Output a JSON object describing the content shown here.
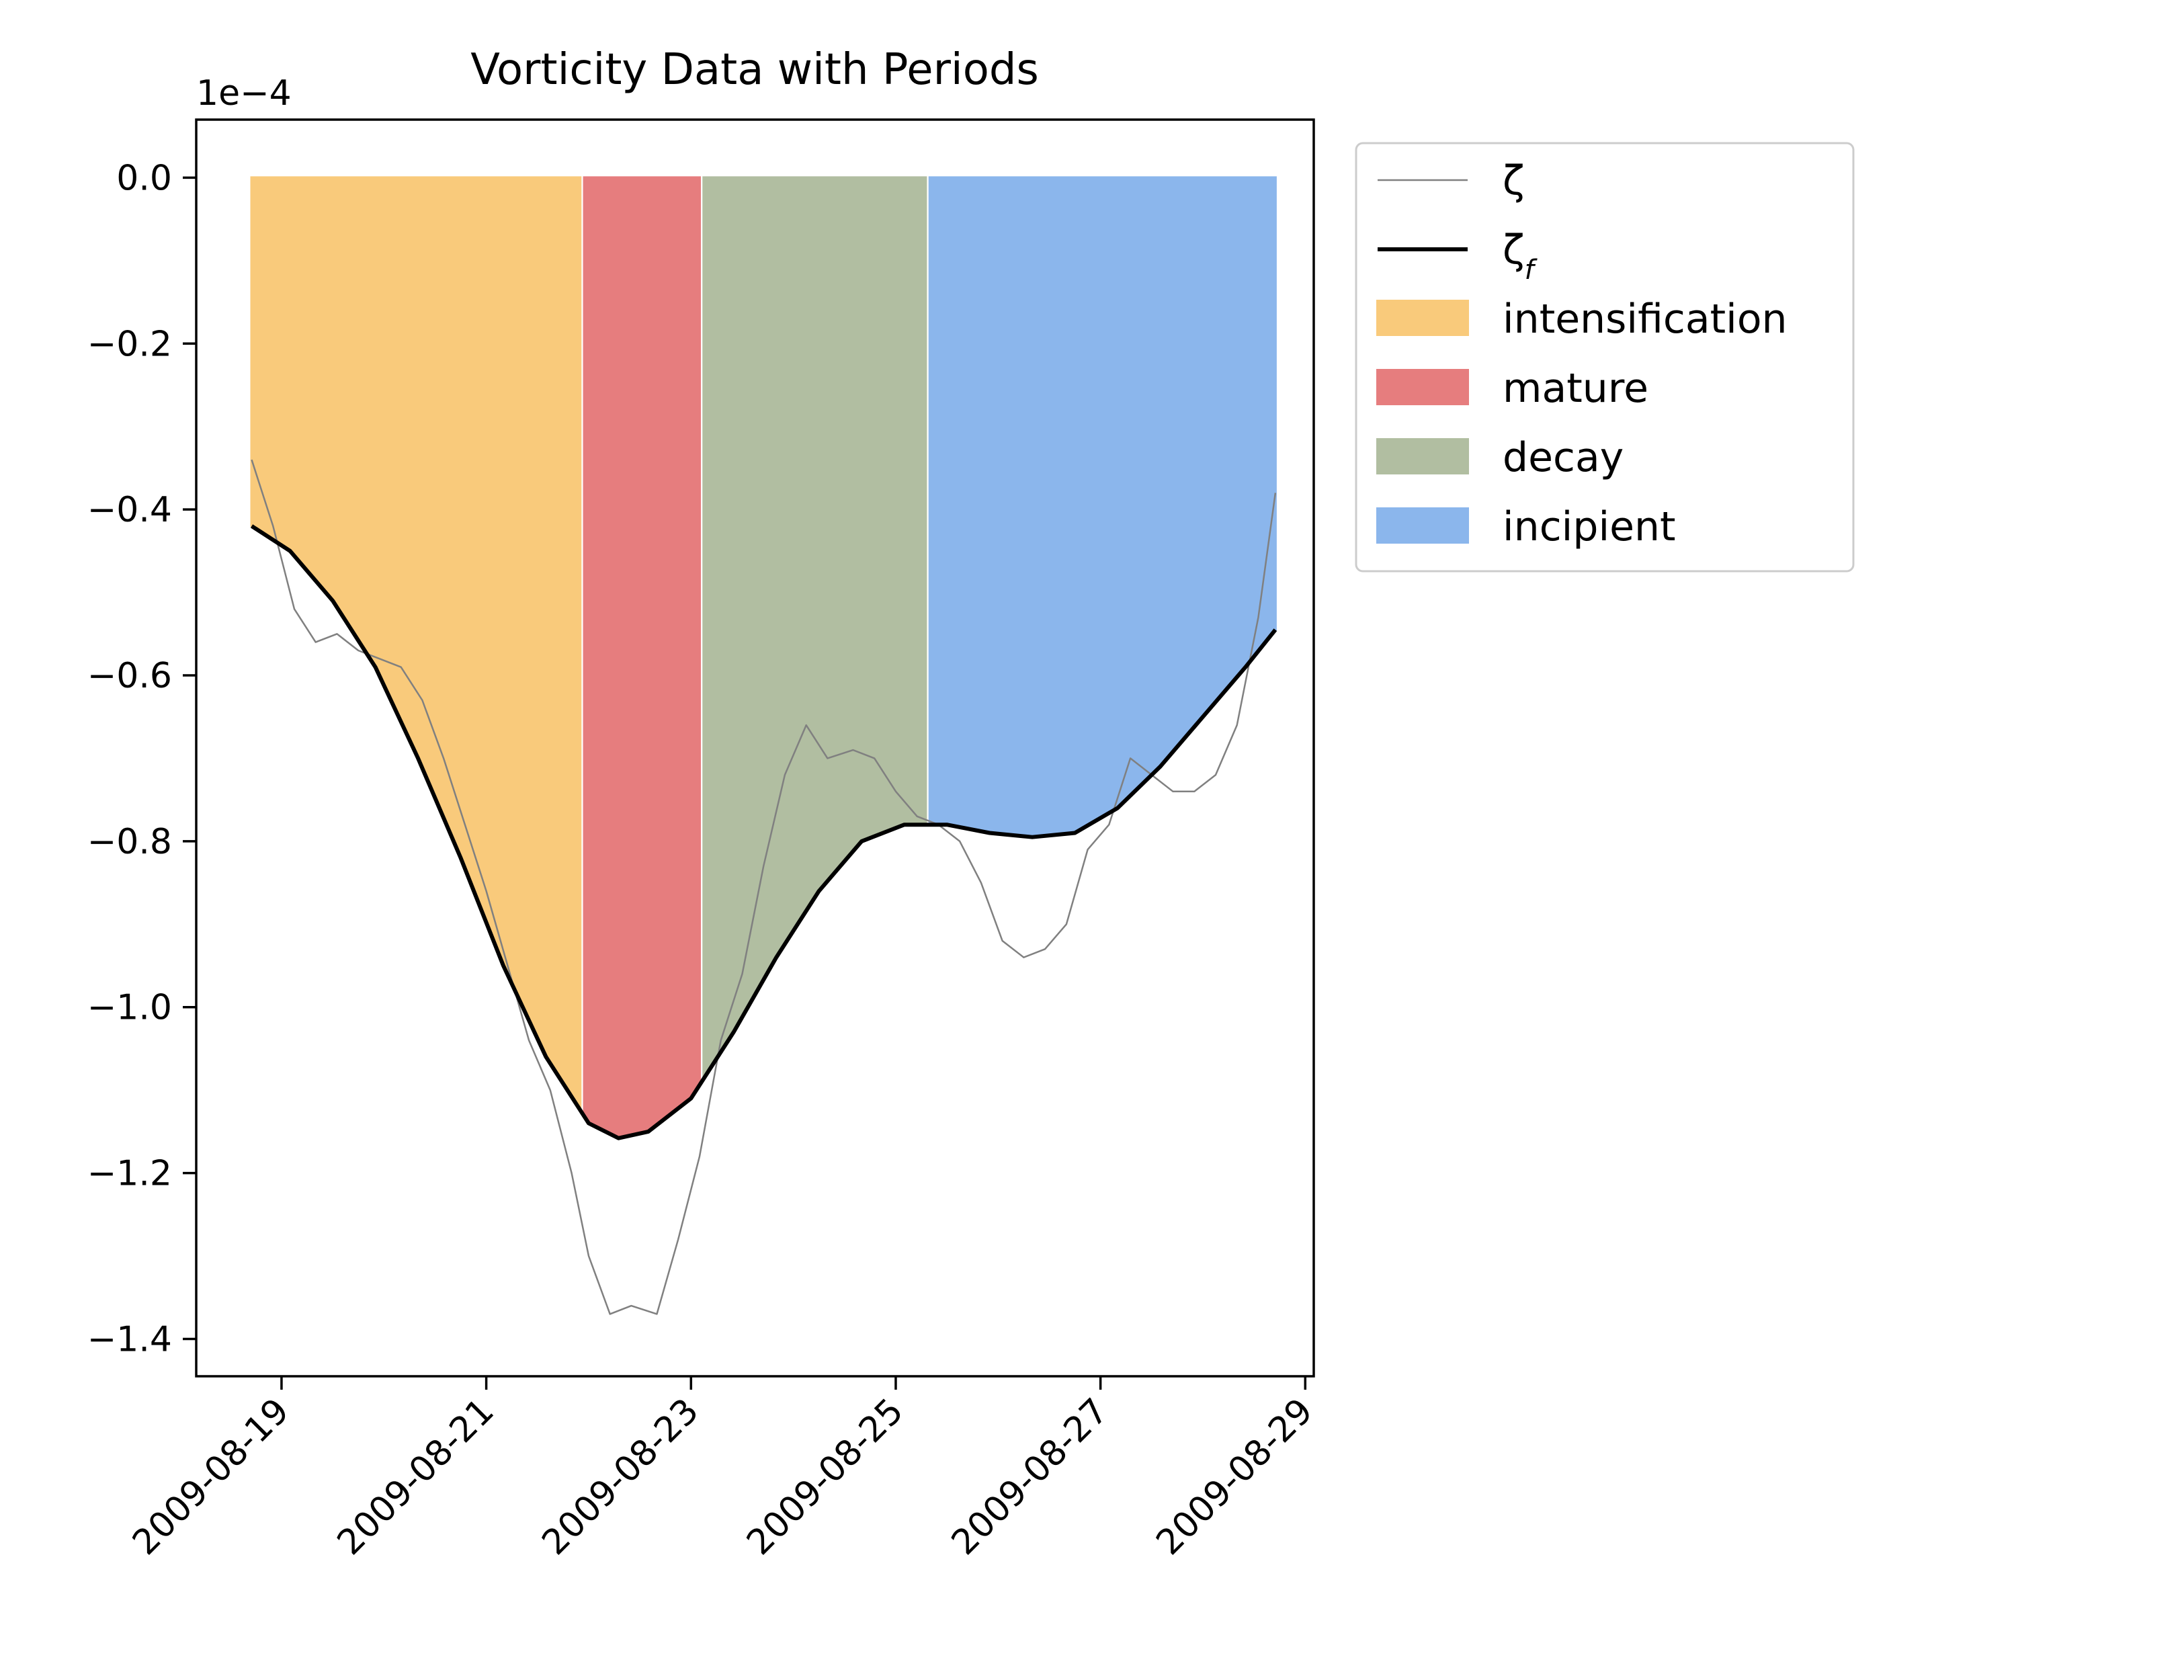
{
  "chart_data": {
    "type": "area",
    "title": "Vorticity Data with Periods",
    "xlabel": "",
    "ylabel": "",
    "y_scale_label": "1e−4",
    "y_scale_factor": 0.0001,
    "xlim": [
      "2009-08-18T04:00",
      "2009-08-29T02:00"
    ],
    "ylim": [
      -1.445,
      0.07
    ],
    "grid": false,
    "legend_position": "outside-upper-right",
    "x_ticks": [
      "2009-08-19",
      "2009-08-21",
      "2009-08-23",
      "2009-08-25",
      "2009-08-27",
      "2009-08-29"
    ],
    "y_ticks": [
      0.0,
      -0.2,
      -0.4,
      -0.6,
      -0.8,
      -1.0,
      -1.2,
      -1.4
    ],
    "y_tick_labels": [
      "0.0",
      "−0.2",
      "−0.4",
      "−0.6",
      "−0.8",
      "−1.0",
      "−1.2",
      "−1.4"
    ],
    "periods": [
      {
        "name": "intensification",
        "start": "2009-08-18T17:00",
        "end": "2009-08-21T22:00",
        "color": "#f5a623",
        "edge": "#f5a623"
      },
      {
        "name": "mature",
        "start": "2009-08-21T23:00",
        "end": "2009-08-23T02:00",
        "color": "#d62728",
        "edge": "#d62728"
      },
      {
        "name": "decay",
        "start": "2009-08-23T03:00",
        "end": "2009-08-25T07:00",
        "color": "#7d9263",
        "edge": "#7d9263"
      },
      {
        "name": "incipient",
        "start": "2009-08-25T08:00",
        "end": "2009-08-28T17:00",
        "color": "#3d85e0",
        "edge": "#3d85e0"
      }
    ],
    "series": [
      {
        "name": "ζ",
        "color": "#808080",
        "x": [
          "2009-08-18T17:00",
          "2009-08-18T22:00",
          "2009-08-19T03:00",
          "2009-08-19T08:00",
          "2009-08-19T13:00",
          "2009-08-19T18:00",
          "2009-08-19T23:00",
          "2009-08-20T04:00",
          "2009-08-20T09:00",
          "2009-08-20T14:00",
          "2009-08-20T19:00",
          "2009-08-21T00:00",
          "2009-08-21T05:00",
          "2009-08-21T10:00",
          "2009-08-21T15:00",
          "2009-08-21T20:00",
          "2009-08-22T00:00",
          "2009-08-22T05:00",
          "2009-08-22T10:00",
          "2009-08-22T16:00",
          "2009-08-22T21:00",
          "2009-08-23T02:00",
          "2009-08-23T07:00",
          "2009-08-23T12:00",
          "2009-08-23T17:00",
          "2009-08-23T22:00",
          "2009-08-24T03:00",
          "2009-08-24T08:00",
          "2009-08-24T14:00",
          "2009-08-24T19:00",
          "2009-08-25T00:00",
          "2009-08-25T05:00",
          "2009-08-25T10:00",
          "2009-08-25T15:00",
          "2009-08-25T20:00",
          "2009-08-26T01:00",
          "2009-08-26T06:00",
          "2009-08-26T11:00",
          "2009-08-26T16:00",
          "2009-08-26T21:00",
          "2009-08-27T02:00",
          "2009-08-27T07:00",
          "2009-08-27T12:00",
          "2009-08-27T17:00",
          "2009-08-27T22:00",
          "2009-08-28T03:00",
          "2009-08-28T08:00",
          "2009-08-28T13:00",
          "2009-08-28T17:00"
        ],
        "values": [
          -0.34,
          -0.42,
          -0.52,
          -0.56,
          -0.55,
          -0.57,
          -0.58,
          -0.59,
          -0.63,
          -0.7,
          -0.78,
          -0.86,
          -0.95,
          -1.04,
          -1.1,
          -1.2,
          -1.3,
          -1.37,
          -1.36,
          -1.37,
          -1.28,
          -1.18,
          -1.04,
          -0.96,
          -0.83,
          -0.72,
          -0.66,
          -0.7,
          -0.69,
          -0.7,
          -0.74,
          -0.77,
          -0.78,
          -0.8,
          -0.85,
          -0.92,
          -0.94,
          -0.93,
          -0.9,
          -0.81,
          -0.78,
          -0.7,
          -0.72,
          -0.74,
          -0.74,
          -0.72,
          -0.66,
          -0.53,
          -0.38
        ]
      },
      {
        "name": "ζ_f",
        "color": "#000000",
        "x": [
          "2009-08-18T17:00",
          "2009-08-19T02:00",
          "2009-08-19T12:00",
          "2009-08-19T22:00",
          "2009-08-20T08:00",
          "2009-08-20T18:00",
          "2009-08-21T04:00",
          "2009-08-21T14:00",
          "2009-08-22T00:00",
          "2009-08-22T07:00",
          "2009-08-22T14:00",
          "2009-08-23T00:00",
          "2009-08-23T10:00",
          "2009-08-23T20:00",
          "2009-08-24T06:00",
          "2009-08-24T16:00",
          "2009-08-25T02:00",
          "2009-08-25T12:00",
          "2009-08-25T22:00",
          "2009-08-26T08:00",
          "2009-08-26T18:00",
          "2009-08-27T04:00",
          "2009-08-27T14:00",
          "2009-08-28T00:00",
          "2009-08-28T10:00",
          "2009-08-28T17:00"
        ],
        "values": [
          -0.42,
          -0.45,
          -0.51,
          -0.59,
          -0.7,
          -0.82,
          -0.95,
          -1.06,
          -1.14,
          -1.158,
          -1.15,
          -1.11,
          -1.03,
          -0.94,
          -0.86,
          -0.8,
          -0.78,
          -0.78,
          -0.79,
          -0.795,
          -0.79,
          -0.76,
          -0.71,
          -0.65,
          -0.59,
          -0.545
        ]
      }
    ]
  }
}
